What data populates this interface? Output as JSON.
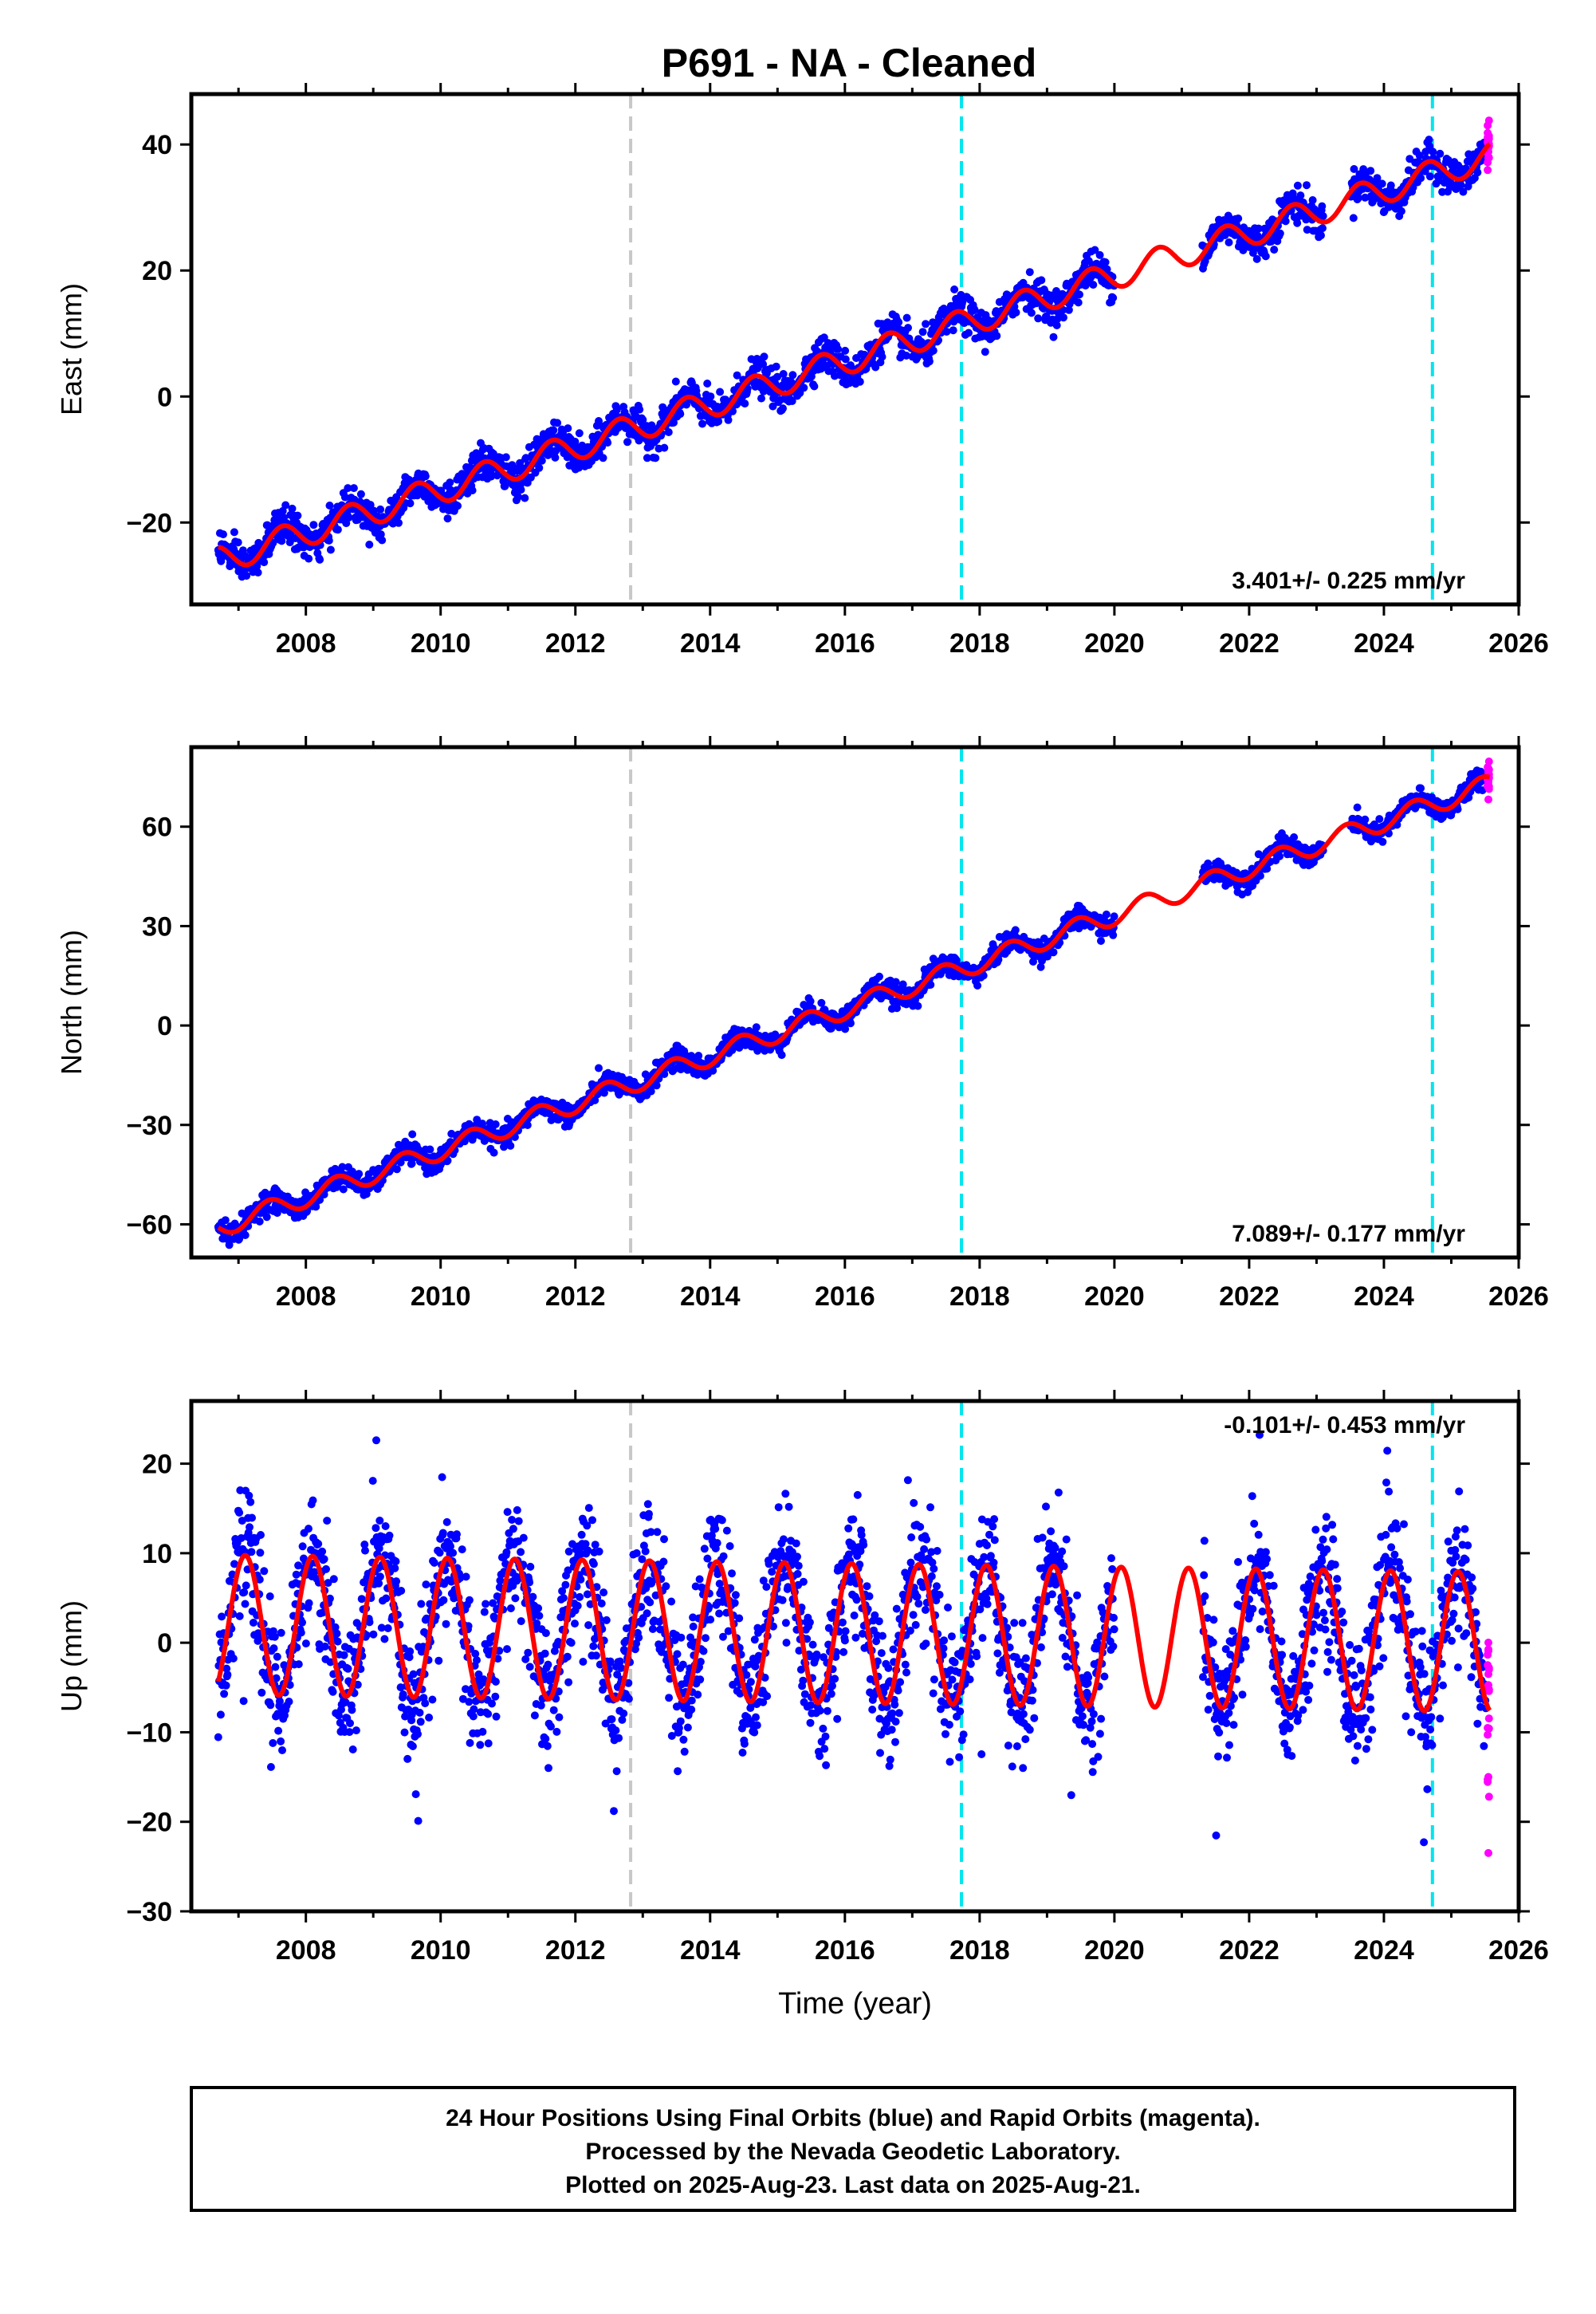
{
  "title": "P691  - NA - Cleaned",
  "colors": {
    "final_orbits": "#0000ff",
    "rapid_orbits": "#ff00ff",
    "model": "#ff0000",
    "antenna_change": "#c8c8c8",
    "equipment_change": "#00e5ee"
  },
  "chart_data": [
    {
      "type": "scatter",
      "ylabel": "East (mm)",
      "xlim": [
        2006.3,
        2026.0
      ],
      "ylim": [
        -33,
        48
      ],
      "xticks": [
        "2008",
        "2010",
        "2012",
        "2014",
        "2016",
        "2018",
        "2020",
        "2022",
        "2024",
        "2026"
      ],
      "yticks": [
        "−20",
        "0",
        "20",
        "40"
      ],
      "rate_text": "3.401+/- 0.225 mm/yr",
      "rate_position": "bottom-right",
      "vertical_lines": [
        {
          "x": 2012.82,
          "kind": "antenna_change"
        },
        {
          "x": 2017.73,
          "kind": "equipment_change"
        },
        {
          "x": 2024.72,
          "kind": "equipment_change"
        }
      ],
      "model": {
        "t0": 2006.7,
        "y0": -26.0,
        "slope": 3.401,
        "annual_amp": 2.2,
        "annual_phase": 0.3
      },
      "data_gap": [
        2020.0,
        2021.3
      ],
      "final_orbits_end": 2025.52,
      "rapid_orbits_end": 2025.64,
      "series": [
        {
          "name": "Final Orbits",
          "values_desc": ""
        },
        {
          "name": "Rapid Orbits",
          "values_desc": ""
        }
      ]
    },
    {
      "type": "scatter",
      "ylabel": "North (mm)",
      "xlim": [
        2006.3,
        2026.0
      ],
      "ylim": [
        -70,
        84
      ],
      "xticks": [
        "2008",
        "2010",
        "2012",
        "2014",
        "2016",
        "2018",
        "2020",
        "2022",
        "2024",
        "2026"
      ],
      "yticks": [
        "−60",
        "−30",
        "0",
        "30",
        "60"
      ],
      "rate_text": "7.089+/- 0.177 mm/yr",
      "rate_position": "bottom-right",
      "vertical_lines": [
        {
          "x": 2012.82,
          "kind": "antenna_change"
        },
        {
          "x": 2017.73,
          "kind": "equipment_change"
        },
        {
          "x": 2024.72,
          "kind": "equipment_change"
        }
      ],
      "model": {
        "t0": 2006.7,
        "y0": -61.0,
        "slope": 7.089,
        "annual_amp": 3.0,
        "annual_phase": 0.5
      },
      "data_gap": [
        2020.0,
        2021.3
      ],
      "final_orbits_end": 2025.52,
      "rapid_orbits_end": 2025.64,
      "series": [
        {
          "name": "Final Orbits",
          "values_desc": ""
        },
        {
          "name": "Rapid Orbits",
          "values_desc": ""
        }
      ]
    },
    {
      "type": "scatter",
      "ylabel": "Up (mm)",
      "xlabel": "Time (year)",
      "xlim": [
        2006.3,
        2026.0
      ],
      "ylim": [
        -30,
        27
      ],
      "xticks": [
        "2008",
        "2010",
        "2012",
        "2014",
        "2016",
        "2018",
        "2020",
        "2022",
        "2024",
        "2026"
      ],
      "yticks": [
        "−30",
        "−20",
        "−10",
        "0",
        "10",
        "20"
      ],
      "rate_text": "-0.101+/- 0.453 mm/yr",
      "rate_position": "top-right",
      "vertical_lines": [
        {
          "x": 2012.82,
          "kind": "antenna_change"
        },
        {
          "x": 2017.73,
          "kind": "equipment_change"
        },
        {
          "x": 2024.72,
          "kind": "equipment_change"
        }
      ],
      "model": {
        "t0": 2006.7,
        "y0": 2.0,
        "slope": -0.101,
        "annual_amp": 7.8,
        "annual_phase": 0.85
      },
      "data_gap": [
        2020.0,
        2021.3
      ],
      "final_orbits_end": 2025.52,
      "rapid_orbits_end": 2025.64,
      "series": [
        {
          "name": "Final Orbits",
          "values_desc": ""
        },
        {
          "name": "Rapid Orbits",
          "values_desc": ""
        }
      ]
    }
  ],
  "footer": {
    "line1": "24 Hour Positions Using Final Orbits (blue) and Rapid Orbits (magenta).",
    "line2": "Processed by the Nevada Geodetic Laboratory.",
    "line3": "Plotted on 2025-Aug-23. Last data on 2025-Aug-21."
  }
}
